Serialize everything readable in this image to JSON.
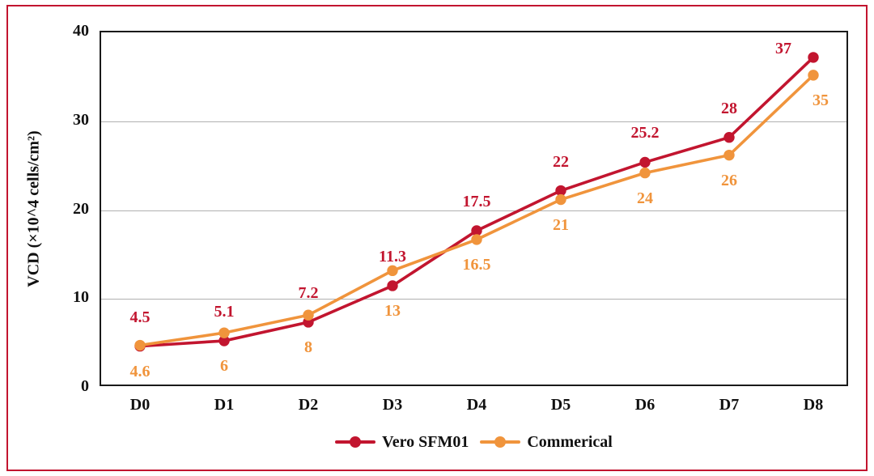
{
  "colors": {
    "frame_border": "#c2152f",
    "plot_border": "#1a1a1a",
    "gridline": "#b0b0b0",
    "tick_text": "#111111"
  },
  "chart_data": {
    "type": "line",
    "categories": [
      "D0",
      "D1",
      "D2",
      "D3",
      "D4",
      "D5",
      "D6",
      "D7",
      "D8"
    ],
    "series": [
      {
        "name": "Vero SFM01",
        "color": "#c2152f",
        "values": [
          4.5,
          5.1,
          7.2,
          11.3,
          17.5,
          22,
          25.2,
          28,
          37
        ],
        "labels": [
          "4.5",
          "5.1",
          "7.2",
          "11.3",
          "17.5",
          "22",
          "25.2",
          "28",
          "37"
        ]
      },
      {
        "name": "Commerical",
        "color": "#f0943c",
        "values": [
          4.6,
          6,
          8,
          13,
          16.5,
          21,
          24,
          26,
          35
        ],
        "labels": [
          "4.6",
          "6",
          "8",
          "13",
          "16.5",
          "21",
          "24",
          "26",
          "35"
        ]
      }
    ],
    "title": "",
    "xlabel": "",
    "ylabel": "VCD (×10^4 cells/cm²)",
    "yticks": [
      0,
      10,
      20,
      30,
      40
    ],
    "ylim": [
      0,
      40
    ],
    "grid": true,
    "legend_position": "bottom",
    "data_labels": true
  }
}
